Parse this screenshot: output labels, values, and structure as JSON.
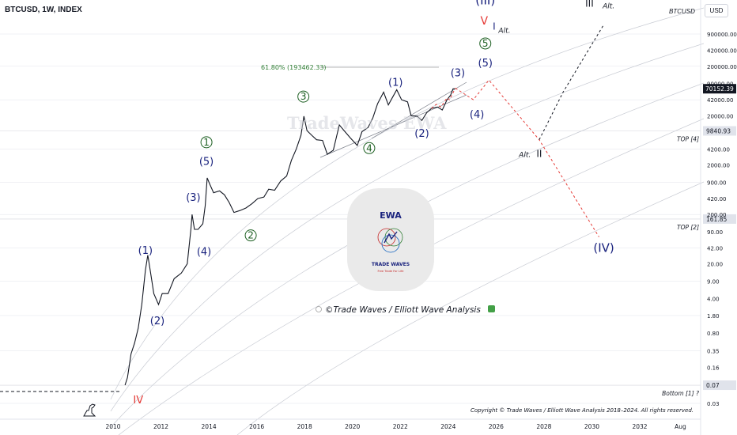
{
  "header": {
    "symbol": "BTCUSD, 1W, INDEX",
    "ticker_tag": "BTCUSD",
    "currency_button": "USD"
  },
  "colors": {
    "navy": "#1a237e",
    "green": "#1b5e20",
    "red": "#e53935",
    "grid": "#e0e3eb",
    "price": "#131722"
  },
  "chart_data": {
    "type": "line",
    "x_axis": {
      "ticks": [
        "2010",
        "2012",
        "2014",
        "2016",
        "2018",
        "2020",
        "2022",
        "2024",
        "2026",
        "2028",
        "2030",
        "2032",
        "Aug"
      ]
    },
    "y_axis": {
      "scale": "log",
      "ticks": [
        "900000.00",
        "420000.00",
        "200000.00",
        "90000.00",
        "42000.00",
        "20000.00",
        "4200.00",
        "2000.00",
        "900.00",
        "420.00",
        "200.00",
        "90.00",
        "42.00",
        "20.00",
        "9.00",
        "4.00",
        "1.80",
        "0.80",
        "0.35",
        "0.16",
        "0.03"
      ],
      "hidden_tick_values": [
        9000,
        0.07
      ]
    },
    "current_price": {
      "label": "70152.39",
      "value": 70152.39
    },
    "price_labels": [
      {
        "label": "9840.93",
        "value": 9840.93,
        "level": "TOP [4]"
      },
      {
        "label": "161.85",
        "value": 161.85,
        "level": "TOP [2]"
      },
      {
        "label": "0.07",
        "value": 0.07,
        "level": "Bottom [1] ?"
      }
    ],
    "fib_label": "61.80% (193462.33)",
    "series": [
      {
        "values": [
          {
            "x": 2010.5,
            "y": 0.07
          },
          {
            "x": 2010.6,
            "y": 0.1
          },
          {
            "x": 2010.75,
            "y": 0.3
          },
          {
            "x": 2010.9,
            "y": 0.5
          },
          {
            "x": 2011.05,
            "y": 1
          },
          {
            "x": 2011.2,
            "y": 3
          },
          {
            "x": 2011.35,
            "y": 15
          },
          {
            "x": 2011.45,
            "y": 30
          },
          {
            "x": 2011.55,
            "y": 15
          },
          {
            "x": 2011.7,
            "y": 5
          },
          {
            "x": 2011.9,
            "y": 3
          },
          {
            "x": 2012.05,
            "y": 5
          },
          {
            "x": 2012.3,
            "y": 5
          },
          {
            "x": 2012.55,
            "y": 10
          },
          {
            "x": 2012.85,
            "y": 13
          },
          {
            "x": 2013.1,
            "y": 20
          },
          {
            "x": 2013.25,
            "y": 100
          },
          {
            "x": 2013.3,
            "y": 200
          },
          {
            "x": 2013.4,
            "y": 100
          },
          {
            "x": 2013.55,
            "y": 100
          },
          {
            "x": 2013.75,
            "y": 130
          },
          {
            "x": 2013.85,
            "y": 300
          },
          {
            "x": 2013.93,
            "y": 1100
          },
          {
            "x": 2014.05,
            "y": 800
          },
          {
            "x": 2014.2,
            "y": 550
          },
          {
            "x": 2014.45,
            "y": 600
          },
          {
            "x": 2014.65,
            "y": 500
          },
          {
            "x": 2014.85,
            "y": 350
          },
          {
            "x": 2015.05,
            "y": 220
          },
          {
            "x": 2015.3,
            "y": 240
          },
          {
            "x": 2015.55,
            "y": 270
          },
          {
            "x": 2015.8,
            "y": 330
          },
          {
            "x": 2016.05,
            "y": 420
          },
          {
            "x": 2016.3,
            "y": 450
          },
          {
            "x": 2016.5,
            "y": 650
          },
          {
            "x": 2016.75,
            "y": 620
          },
          {
            "x": 2017.0,
            "y": 950
          },
          {
            "x": 2017.25,
            "y": 1200
          },
          {
            "x": 2017.45,
            "y": 2500
          },
          {
            "x": 2017.65,
            "y": 4200
          },
          {
            "x": 2017.85,
            "y": 8000
          },
          {
            "x": 2017.97,
            "y": 19500
          },
          {
            "x": 2018.1,
            "y": 10000
          },
          {
            "x": 2018.3,
            "y": 8000
          },
          {
            "x": 2018.5,
            "y": 6500
          },
          {
            "x": 2018.75,
            "y": 6300
          },
          {
            "x": 2018.95,
            "y": 3300
          },
          {
            "x": 2019.2,
            "y": 4000
          },
          {
            "x": 2019.45,
            "y": 13000
          },
          {
            "x": 2019.65,
            "y": 10000
          },
          {
            "x": 2019.9,
            "y": 7200
          },
          {
            "x": 2020.2,
            "y": 5000
          },
          {
            "x": 2020.4,
            "y": 9500
          },
          {
            "x": 2020.65,
            "y": 11500
          },
          {
            "x": 2020.85,
            "y": 18000
          },
          {
            "x": 2021.05,
            "y": 35000
          },
          {
            "x": 2021.3,
            "y": 60000
          },
          {
            "x": 2021.5,
            "y": 33000
          },
          {
            "x": 2021.65,
            "y": 45000
          },
          {
            "x": 2021.85,
            "y": 67000
          },
          {
            "x": 2022.05,
            "y": 42000
          },
          {
            "x": 2022.3,
            "y": 38000
          },
          {
            "x": 2022.45,
            "y": 20000
          },
          {
            "x": 2022.7,
            "y": 19500
          },
          {
            "x": 2022.9,
            "y": 16000
          },
          {
            "x": 2023.1,
            "y": 23000
          },
          {
            "x": 2023.3,
            "y": 28000
          },
          {
            "x": 2023.55,
            "y": 30000
          },
          {
            "x": 2023.75,
            "y": 26000
          },
          {
            "x": 2023.95,
            "y": 42000
          },
          {
            "x": 2024.1,
            "y": 52000
          },
          {
            "x": 2024.2,
            "y": 70000
          },
          {
            "x": 2024.3,
            "y": 70152.39
          }
        ]
      }
    ],
    "projections": [
      {
        "style": "red-dashed",
        "points": [
          {
            "x": 2023.3,
            "y": 28000
          },
          {
            "x": 2023.5,
            "y": 34000
          },
          {
            "x": 2023.7,
            "y": 30000
          },
          {
            "x": 2023.95,
            "y": 46000
          },
          {
            "x": 2024.05,
            "y": 42000
          },
          {
            "x": 2024.3,
            "y": 72000
          }
        ]
      },
      {
        "style": "red-dashed",
        "points": [
          {
            "x": 2024.3,
            "y": 72000
          },
          {
            "x": 2025.05,
            "y": 42000
          },
          {
            "x": 2025.7,
            "y": 105000
          },
          {
            "x": 2027.8,
            "y": 6500
          },
          {
            "x": 2030.3,
            "y": 70
          }
        ]
      },
      {
        "style": "black-dashed",
        "points": [
          {
            "x": 2027.8,
            "y": 6500
          },
          {
            "x": 2028.8,
            "y": 60000
          },
          {
            "x": 2030.5,
            "y": 1400000
          }
        ]
      }
    ],
    "wave_labels": [
      {
        "text": "(III)",
        "x": 2025.55,
        "y": 3600000,
        "color": "navy",
        "size": 15
      },
      {
        "text": "V",
        "x": 2025.5,
        "y": 1400000,
        "color": "red",
        "size": 14
      },
      {
        "text": "I",
        "x": 2025.92,
        "y": 1100000,
        "color": "navy",
        "size": 12
      },
      {
        "text": "Alt.",
        "x": 2026.35,
        "y": 950000,
        "color": "black",
        "size": 9,
        "italic": true
      },
      {
        "text": "5",
        "x": 2025.55,
        "y": 500000,
        "color": "green",
        "size": 12,
        "circle": true
      },
      {
        "text": "(5)",
        "x": 2025.55,
        "y": 200000,
        "color": "navy",
        "size": 13
      },
      {
        "text": "(3)",
        "x": 2024.4,
        "y": 125000,
        "color": "navy",
        "size": 13
      },
      {
        "text": "(1)",
        "x": 2021.8,
        "y": 80000,
        "color": "navy",
        "size": 13
      },
      {
        "text": "(4)",
        "x": 2025.2,
        "y": 18000,
        "color": "navy",
        "size": 13
      },
      {
        "text": "(2)",
        "x": 2022.9,
        "y": 7500,
        "color": "navy",
        "size": 13
      },
      {
        "text": "3",
        "x": 2017.95,
        "y": 42000,
        "color": "green",
        "size": 12,
        "circle": true
      },
      {
        "text": "4",
        "x": 2020.7,
        "y": 3800,
        "color": "green",
        "size": 12,
        "circle": true
      },
      {
        "text": "1",
        "x": 2013.9,
        "y": 5000,
        "color": "green",
        "size": 12,
        "circle": true
      },
      {
        "text": "(5)",
        "x": 2013.9,
        "y": 2000,
        "color": "navy",
        "size": 13
      },
      {
        "text": "(3)",
        "x": 2013.35,
        "y": 380,
        "color": "navy",
        "size": 13
      },
      {
        "text": "2",
        "x": 2015.75,
        "y": 65,
        "color": "green",
        "size": 12,
        "circle": true
      },
      {
        "text": "(4)",
        "x": 2013.8,
        "y": 30,
        "color": "navy",
        "size": 13
      },
      {
        "text": "(1)",
        "x": 2011.35,
        "y": 32,
        "color": "navy",
        "size": 13
      },
      {
        "text": "(2)",
        "x": 2011.85,
        "y": 1.2,
        "color": "navy",
        "size": 13
      },
      {
        "text": "IV",
        "x": 2011.05,
        "y": 0.03,
        "color": "red",
        "size": 13
      },
      {
        "text": "(IV)",
        "x": 2030.5,
        "y": 35,
        "color": "navy",
        "size": 15
      },
      {
        "text": "III",
        "x": 2029.9,
        "y": 3200000,
        "color": "black",
        "size": 12
      },
      {
        "text": "Alt.",
        "x": 2030.7,
        "y": 3000000,
        "color": "black",
        "size": 9,
        "italic": true
      },
      {
        "text": "Alt.",
        "x": 2027.2,
        "y": 2900,
        "color": "black",
        "size": 9,
        "italic": true
      },
      {
        "text": "II",
        "x": 2027.8,
        "y": 2900,
        "color": "black",
        "size": 12
      }
    ],
    "annotations": {
      "watermark": "TradeWaves EWA",
      "analysis_title": "©Trade Waves / Elliott Wave Analysis",
      "copyright": "Copyright © Trade Waves / Elliott Wave Analysis 2018–2024. All rights reserved.",
      "logo_title": "EWA",
      "logo_name": "TRADE WAVES",
      "logo_tagline": "Free Trade For Life"
    }
  }
}
